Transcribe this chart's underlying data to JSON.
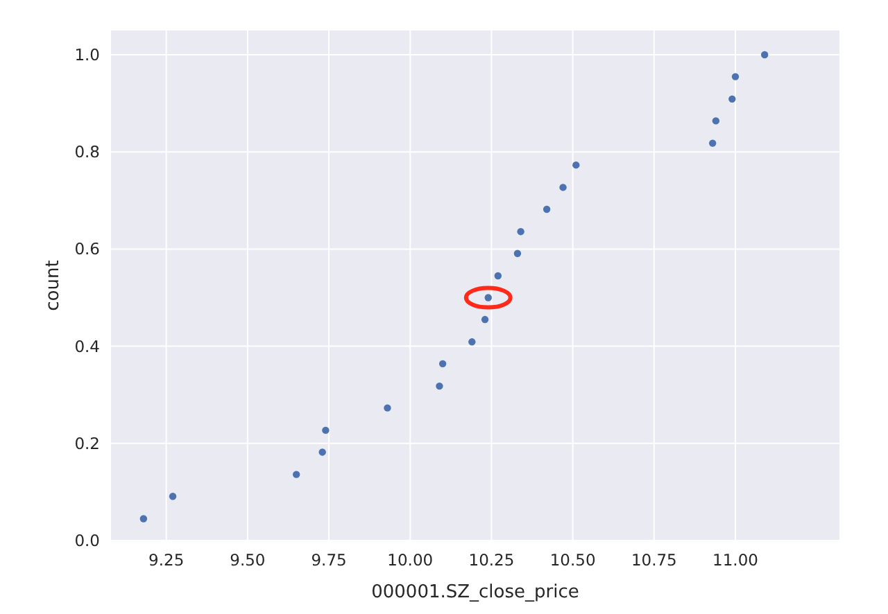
{
  "chart_data": {
    "type": "scatter",
    "xlabel": "000001.SZ_close_price",
    "ylabel": "count",
    "x": [
      9.18,
      9.27,
      9.65,
      9.73,
      9.74,
      9.93,
      10.09,
      10.1,
      10.19,
      10.23,
      10.24,
      10.27,
      10.33,
      10.34,
      10.42,
      10.47,
      10.51,
      10.93,
      10.94,
      10.99,
      11.0,
      11.09
    ],
    "series": [
      {
        "color": "#4c72b0",
        "values": [
          0.045,
          0.091,
          0.136,
          0.182,
          0.227,
          0.273,
          0.318,
          0.364,
          0.409,
          0.455,
          0.5,
          0.545,
          0.591,
          0.636,
          0.682,
          0.727,
          0.773,
          0.818,
          0.864,
          0.909,
          0.955,
          1.0
        ]
      }
    ],
    "xlim": [
      9.08,
      11.32
    ],
    "ylim": [
      0,
      1.05
    ],
    "xticks": [
      {
        "value": 9.25,
        "label": "9.25"
      },
      {
        "value": 9.5,
        "label": "9.50"
      },
      {
        "value": 9.75,
        "label": "9.75"
      },
      {
        "value": 10,
        "label": "10.00"
      },
      {
        "value": 10.25,
        "label": "10.25"
      },
      {
        "value": 10.5,
        "label": "10.50"
      },
      {
        "value": 10.75,
        "label": "10.75"
      },
      {
        "value": 11,
        "label": "11.00"
      }
    ],
    "yticks": [
      {
        "value": 0,
        "label": "0.0"
      },
      {
        "value": 0.2,
        "label": "0.2"
      },
      {
        "value": 0.4,
        "label": "0.4"
      },
      {
        "value": 0.6,
        "label": "0.6"
      },
      {
        "value": 0.8,
        "label": "0.8"
      },
      {
        "value": 1,
        "label": "1.0"
      }
    ],
    "grid": true,
    "marker": "circle"
  }
}
